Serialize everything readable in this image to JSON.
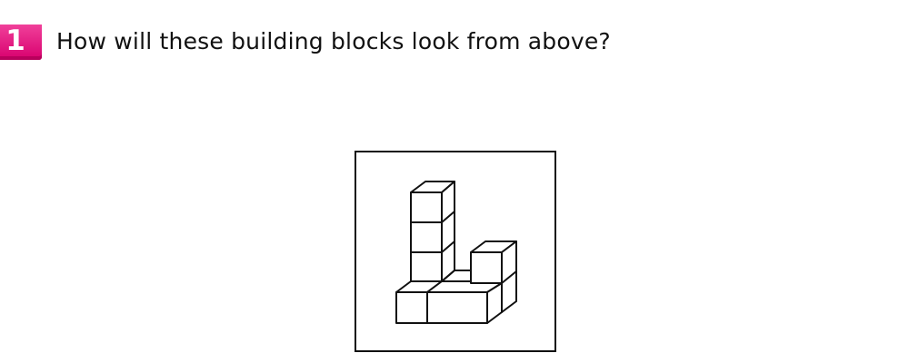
{
  "question": {
    "number": "1",
    "text": "How will these building blocks look from above?",
    "badge_color": "#e8127f"
  },
  "figure": {
    "icon": "isometric-building-blocks"
  }
}
